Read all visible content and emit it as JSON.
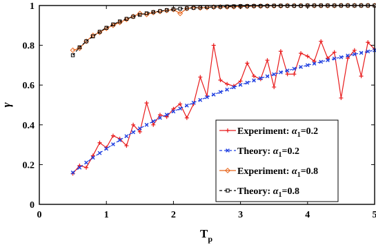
{
  "chart_data": {
    "type": "line",
    "xlabel": "T",
    "xlabel_sub": "p",
    "ylabel": "γ",
    "xlim": [
      0,
      5
    ],
    "ylim": [
      0,
      1
    ],
    "xticks": [
      "0",
      "1",
      "2",
      "3",
      "4",
      "5"
    ],
    "yticks": [
      "0",
      "0.2",
      "0.4",
      "0.6",
      "0.8",
      "1"
    ],
    "grid": false,
    "legend_position": "bottom-right",
    "series": [
      {
        "name": "Experiment: α1=0.2",
        "legend_prefix": "Experiment: ",
        "legend_symbol": "α",
        "legend_sub": "1",
        "legend_suffix": "=0.2",
        "color": "#e8191a",
        "linestyle": "solid",
        "marker": "plus",
        "x": [
          0.5,
          0.6,
          0.7,
          0.8,
          0.9,
          1.0,
          1.1,
          1.2,
          1.3,
          1.4,
          1.5,
          1.6,
          1.7,
          1.8,
          1.9,
          2.0,
          2.1,
          2.2,
          2.3,
          2.4,
          2.5,
          2.6,
          2.7,
          2.8,
          2.9,
          3.0,
          3.1,
          3.2,
          3.3,
          3.4,
          3.5,
          3.6,
          3.7,
          3.8,
          3.9,
          4.0,
          4.1,
          4.2,
          4.3,
          4.4,
          4.5,
          4.6,
          4.7,
          4.8,
          4.9,
          5.0
        ],
        "y": [
          0.155,
          0.195,
          0.185,
          0.245,
          0.31,
          0.285,
          0.345,
          0.33,
          0.295,
          0.4,
          0.365,
          0.51,
          0.4,
          0.45,
          0.44,
          0.48,
          0.505,
          0.435,
          0.505,
          0.64,
          0.545,
          0.8,
          0.625,
          0.605,
          0.595,
          0.62,
          0.71,
          0.645,
          0.63,
          0.725,
          0.59,
          0.77,
          0.655,
          0.655,
          0.76,
          0.745,
          0.72,
          0.82,
          0.735,
          0.765,
          0.535,
          0.735,
          0.775,
          0.645,
          0.815,
          0.78
        ]
      },
      {
        "name": "Theory: α1=0.2",
        "legend_prefix": "Theory: ",
        "legend_symbol": "α",
        "legend_sub": "1",
        "legend_suffix": "=0.2",
        "color": "#1f3fe0",
        "linestyle": "dashed",
        "marker": "x",
        "x": [
          0.5,
          0.6,
          0.7,
          0.8,
          0.9,
          1.0,
          1.1,
          1.2,
          1.3,
          1.4,
          1.5,
          1.6,
          1.7,
          1.8,
          1.9,
          2.0,
          2.1,
          2.2,
          2.3,
          2.4,
          2.5,
          2.6,
          2.7,
          2.8,
          2.9,
          3.0,
          3.1,
          3.2,
          3.3,
          3.4,
          3.5,
          3.6,
          3.7,
          3.8,
          3.9,
          4.0,
          4.1,
          4.2,
          4.3,
          4.4,
          4.5,
          4.6,
          4.7,
          4.8,
          4.9,
          5.0
        ],
        "y": [
          0.16,
          0.185,
          0.21,
          0.235,
          0.258,
          0.28,
          0.302,
          0.323,
          0.343,
          0.363,
          0.382,
          0.4,
          0.418,
          0.435,
          0.451,
          0.467,
          0.482,
          0.497,
          0.511,
          0.525,
          0.539,
          0.552,
          0.565,
          0.577,
          0.589,
          0.601,
          0.612,
          0.623,
          0.634,
          0.644,
          0.654,
          0.664,
          0.673,
          0.682,
          0.691,
          0.7,
          0.708,
          0.717,
          0.725,
          0.733,
          0.74,
          0.748,
          0.755,
          0.762,
          0.769,
          0.775
        ]
      },
      {
        "name": "Experiment: α1=0.8",
        "legend_prefix": "Experiment: ",
        "legend_symbol": "α",
        "legend_sub": "1",
        "legend_suffix": "=0.8",
        "color": "#e8641a",
        "linestyle": "solid",
        "marker": "diamond",
        "x": [
          0.5,
          0.6,
          0.7,
          0.8,
          0.9,
          1.0,
          1.1,
          1.2,
          1.3,
          1.4,
          1.5,
          1.6,
          1.7,
          1.8,
          1.9,
          2.0,
          2.1,
          2.2,
          2.3,
          2.4,
          2.5,
          2.6,
          2.7,
          2.8,
          2.9,
          3.0,
          3.1,
          3.2,
          3.3,
          3.4,
          3.5,
          3.6,
          3.7,
          3.8,
          3.9,
          4.0,
          4.1,
          4.2,
          4.3,
          4.4,
          4.5,
          4.6,
          4.7,
          4.8,
          4.9,
          5.0
        ],
        "y": [
          0.775,
          0.785,
          0.82,
          0.85,
          0.865,
          0.885,
          0.9,
          0.915,
          0.93,
          0.945,
          0.96,
          0.955,
          0.965,
          0.97,
          0.975,
          0.98,
          0.96,
          0.985,
          0.99,
          0.988,
          0.99,
          0.992,
          0.993,
          0.993,
          0.994,
          0.995,
          0.996,
          0.997,
          0.997,
          0.998,
          0.998,
          0.998,
          0.999,
          0.999,
          0.999,
          0.999,
          0.999,
          0.999,
          0.999,
          0.999,
          1.0,
          1.0,
          1.0,
          1.0,
          1.0,
          1.0
        ]
      },
      {
        "name": "Theory: α1=0.8",
        "legend_prefix": "Theory: ",
        "legend_symbol": "α",
        "legend_sub": "1",
        "legend_suffix": "=0.8",
        "color": "#000000",
        "linestyle": "dashed",
        "marker": "square",
        "x": [
          0.5,
          0.6,
          0.7,
          0.8,
          0.9,
          1.0,
          1.1,
          1.2,
          1.3,
          1.4,
          1.5,
          1.6,
          1.7,
          1.8,
          1.9,
          2.0,
          2.1,
          2.2,
          2.3,
          2.4,
          2.5,
          2.6,
          2.7,
          2.8,
          2.9,
          3.0,
          3.1,
          3.2,
          3.3,
          3.4,
          3.5,
          3.6,
          3.7,
          3.8,
          3.9,
          4.0,
          4.1,
          4.2,
          4.3,
          4.4,
          4.5,
          4.6,
          4.7,
          4.8,
          4.9,
          5.0
        ],
        "y": [
          0.75,
          0.79,
          0.82,
          0.845,
          0.868,
          0.888,
          0.905,
          0.92,
          0.933,
          0.944,
          0.953,
          0.961,
          0.967,
          0.972,
          0.977,
          0.981,
          0.984,
          0.986,
          0.988,
          0.99,
          0.992,
          0.993,
          0.994,
          0.995,
          0.996,
          0.997,
          0.997,
          0.998,
          0.998,
          0.998,
          0.999,
          0.999,
          0.999,
          0.999,
          0.999,
          1.0,
          1.0,
          1.0,
          1.0,
          1.0,
          1.0,
          1.0,
          1.0,
          1.0,
          1.0,
          1.0
        ]
      }
    ]
  }
}
